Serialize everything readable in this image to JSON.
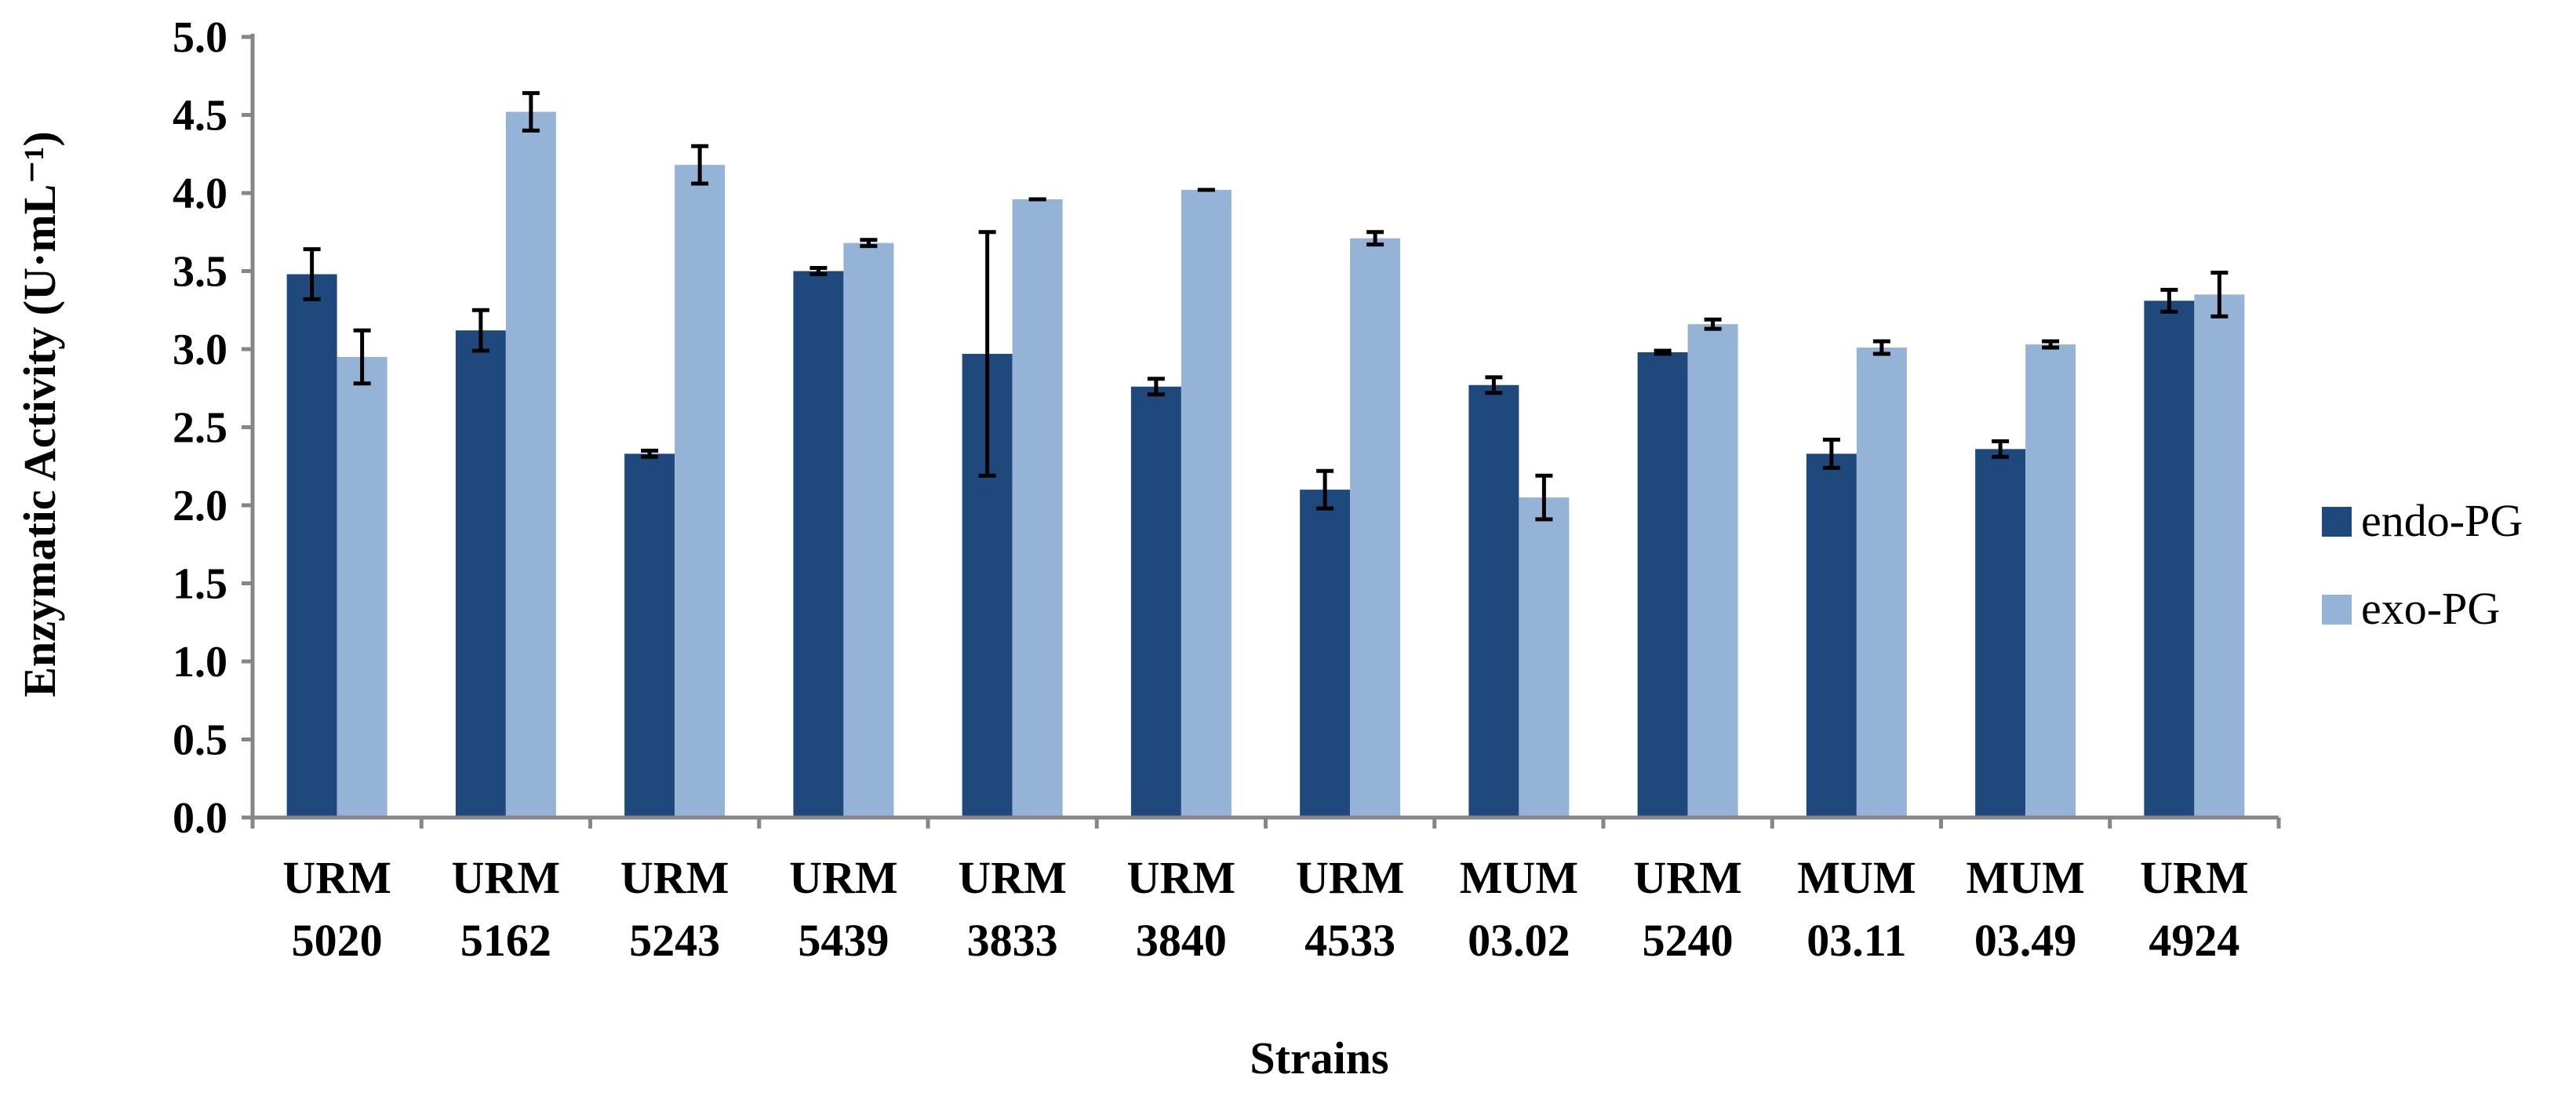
{
  "chart_data": {
    "type": "bar",
    "title": "",
    "xlabel": "Strains",
    "ylabel": "Enzymatic Activity (U·mL⁻¹)",
    "ylim": [
      0,
      5.0
    ],
    "ytick_step": 0.5,
    "yticks": [
      "0.0",
      "0.5",
      "1.0",
      "1.5",
      "2.0",
      "2.5",
      "3.0",
      "3.5",
      "4.0",
      "4.5",
      "5.0"
    ],
    "grid": false,
    "legend_position": "right",
    "categories": [
      [
        "URM",
        "5020"
      ],
      [
        "URM",
        "5162"
      ],
      [
        "URM",
        "5243"
      ],
      [
        "URM",
        "5439"
      ],
      [
        "URM",
        "3833"
      ],
      [
        "URM",
        "3840"
      ],
      [
        "URM",
        "4533"
      ],
      [
        "MUM",
        "03.02"
      ],
      [
        "URM",
        "5240"
      ],
      [
        "MUM",
        "03.11"
      ],
      [
        "MUM",
        "03.49"
      ],
      [
        "URM",
        "4924"
      ]
    ],
    "series": [
      {
        "name": "endo-PG",
        "color": "#1f497d",
        "values": [
          3.48,
          3.12,
          2.33,
          3.5,
          2.97,
          2.76,
          2.1,
          2.77,
          2.98,
          2.33,
          2.36,
          3.31
        ],
        "errors": [
          0.16,
          0.13,
          0.02,
          0.02,
          0.78,
          0.05,
          0.12,
          0.05,
          0.01,
          0.09,
          0.05,
          0.07
        ]
      },
      {
        "name": "exo-PG",
        "color": "#95b3d7",
        "values": [
          2.95,
          4.52,
          4.18,
          3.68,
          3.96,
          4.02,
          3.71,
          2.05,
          3.16,
          3.01,
          3.03,
          3.35
        ],
        "errors": [
          0.17,
          0.12,
          0.12,
          0.02,
          0.0,
          0.0,
          0.04,
          0.14,
          0.03,
          0.04,
          0.02,
          0.14
        ]
      }
    ]
  }
}
